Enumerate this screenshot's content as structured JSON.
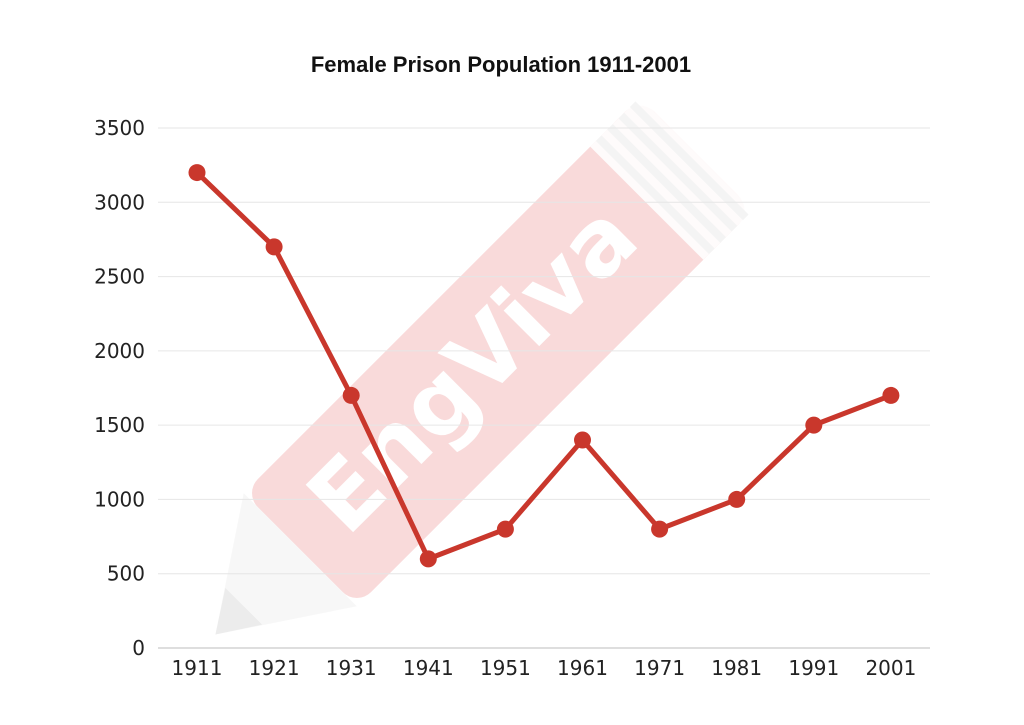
{
  "chart_data": {
    "type": "line",
    "title": "Female Prison Population 1911-2001",
    "xlabel": "",
    "ylabel": "",
    "categories": [
      "1911",
      "1921",
      "1931",
      "1941",
      "1951",
      "1961",
      "1971",
      "1981",
      "1991",
      "2001"
    ],
    "series": [
      {
        "values": [
          3200,
          2700,
          1700,
          600,
          800,
          1400,
          800,
          1000,
          1500,
          1700
        ]
      }
    ],
    "ylim": [
      0,
      3500
    ],
    "yticks": [
      0,
      500,
      1000,
      1500,
      2000,
      2500,
      3000,
      3500
    ],
    "grid": true,
    "legend": "none",
    "line_color": "#c9372c",
    "grid_color": "#e6e6e6",
    "text_color": "#222222"
  },
  "watermark": {
    "text": "EngViva"
  }
}
